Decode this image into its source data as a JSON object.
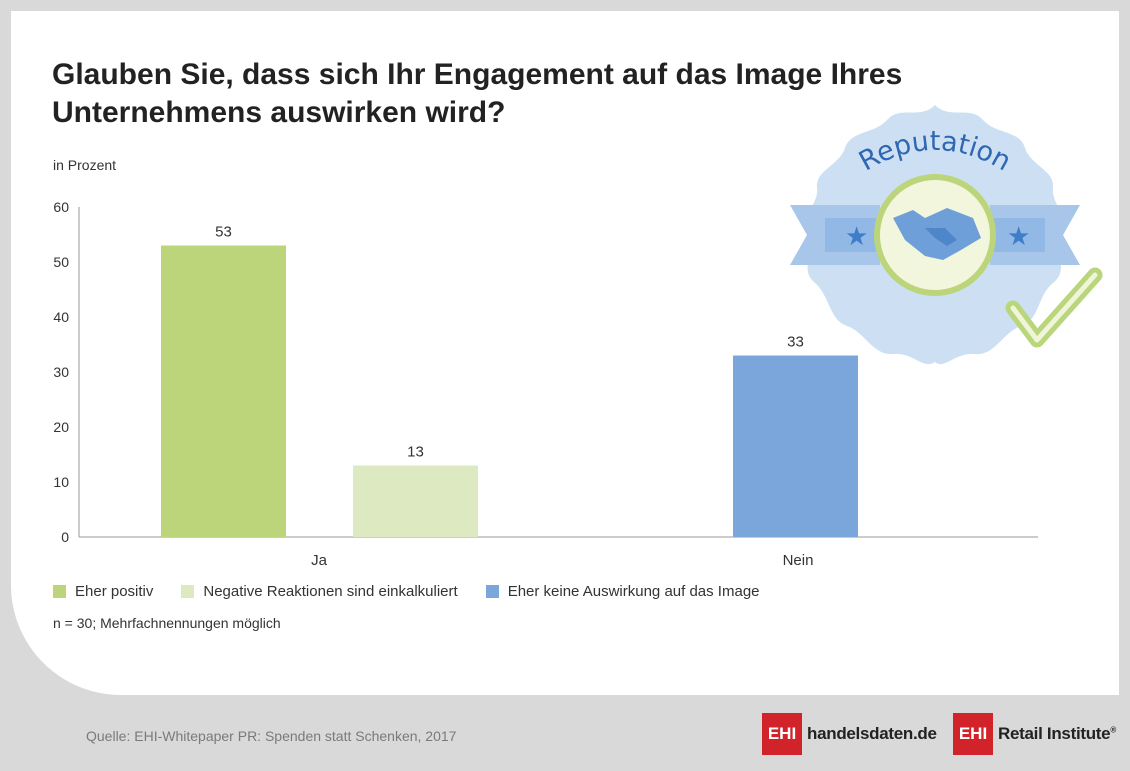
{
  "title": "Glauben Sie, dass sich Ihr Engagement auf das Image Ihres Unternehmens auswirken wird?",
  "unit_label": "in Prozent",
  "note": "n = 30; Mehrfachnennungen möglich",
  "source": "Quelle: EHI-Whitepaper PR: Spenden statt Schenken, 2017",
  "badge": {
    "text": "Reputation",
    "icons": [
      "handshake-icon",
      "star-icon",
      "checkmark-icon"
    ]
  },
  "logos": [
    {
      "box": "EHI",
      "text": "handelsdaten.de"
    },
    {
      "box": "EHI",
      "text": "Retail Institute",
      "mark": "®"
    }
  ],
  "colors": {
    "eher_positiv": "#bcd57a",
    "negative_reaktionen": "#dde9c0",
    "keine_auswirkung": "#7aa6db",
    "brand_red": "#d2232a"
  },
  "chart_data": {
    "type": "bar",
    "categories": [
      "Ja",
      "Nein"
    ],
    "ylim": [
      0,
      60
    ],
    "yticks": [
      0,
      10,
      20,
      30,
      40,
      50,
      60
    ],
    "grid": false,
    "legend_position": "bottom",
    "series": [
      {
        "name": "Eher positiv",
        "color": "#bcd57a",
        "values": [
          53,
          null
        ]
      },
      {
        "name": "Negative Reaktionen sind einkalkuliert",
        "color": "#dde9c0",
        "values": [
          13,
          null
        ]
      },
      {
        "name": "Eher keine Auswirkung auf das Image",
        "color": "#7aa6db",
        "values": [
          null,
          33
        ]
      }
    ],
    "data_labels": [
      "53",
      "13",
      "33"
    ]
  }
}
